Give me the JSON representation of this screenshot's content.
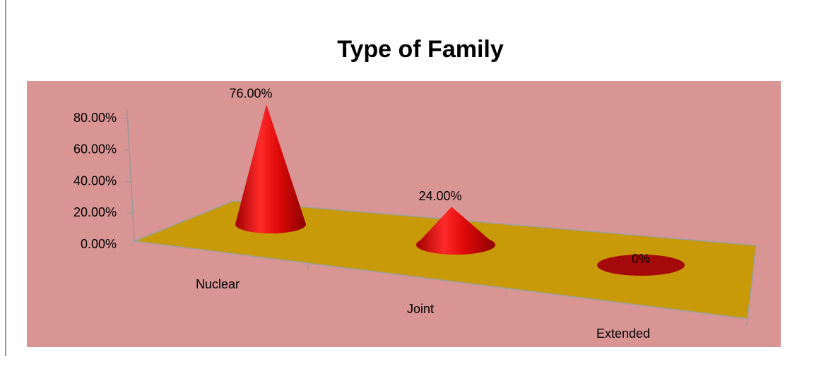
{
  "chart_data": {
    "type": "cone",
    "title": "Type of Family",
    "categories": [
      "Nuclear",
      "Joint",
      "Extended"
    ],
    "values": [
      76,
      24,
      0
    ],
    "value_labels": [
      "76.00%",
      "24.00%",
      "0%"
    ],
    "color": "#e01010",
    "ylim": [
      0,
      80
    ],
    "yticks": [
      {
        "value": 0,
        "label": "0.00%"
      },
      {
        "value": 20,
        "label": "20.00%"
      },
      {
        "value": 40,
        "label": "40.00%"
      },
      {
        "value": 60,
        "label": "60.00%"
      },
      {
        "value": 80,
        "label": "80.00%"
      }
    ]
  }
}
